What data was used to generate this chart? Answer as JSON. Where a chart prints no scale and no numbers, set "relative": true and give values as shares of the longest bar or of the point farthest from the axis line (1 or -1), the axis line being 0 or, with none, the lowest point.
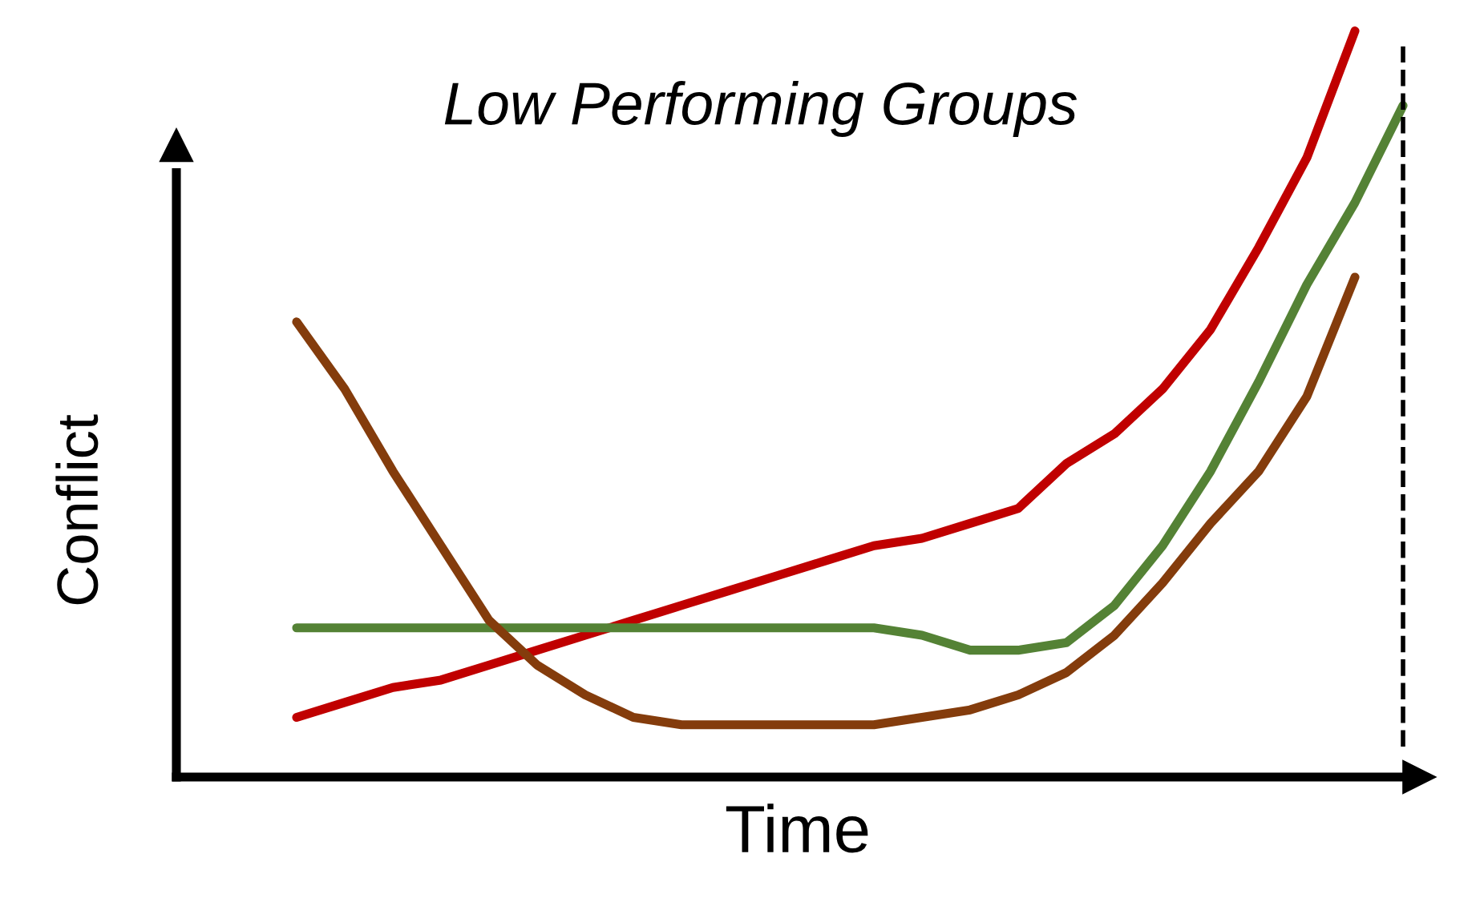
{
  "chart_data": {
    "type": "line",
    "title": "Low Performing Groups",
    "xlabel": "Time",
    "ylabel": "Conflict",
    "relative": true,
    "categories": [
      null,
      null,
      null,
      null,
      null,
      null,
      null,
      null,
      null,
      null,
      null,
      null,
      null,
      null,
      null,
      null,
      null,
      null,
      null,
      null,
      null,
      null,
      null,
      null
    ],
    "series": [
      {
        "color": "#c00000",
        "values": [
          0.08,
          0.1,
          0.12,
          0.13,
          0.15,
          0.17,
          0.19,
          0.21,
          0.23,
          0.25,
          0.27,
          0.29,
          0.31,
          0.32,
          0.34,
          0.36,
          0.42,
          0.46,
          0.52,
          0.6,
          0.71,
          0.83,
          1.0,
          null
        ]
      },
      {
        "color": "#548235",
        "values": [
          0.2,
          0.2,
          0.2,
          0.2,
          0.2,
          0.2,
          0.2,
          0.2,
          0.2,
          0.2,
          0.2,
          0.2,
          0.2,
          0.19,
          0.17,
          0.17,
          0.18,
          0.23,
          0.31,
          0.41,
          0.53,
          0.66,
          0.77,
          0.9
        ]
      },
      {
        "color": "#843c0c",
        "values": [
          0.61,
          0.52,
          0.41,
          0.31,
          0.21,
          0.15,
          0.11,
          0.08,
          0.07,
          0.07,
          0.07,
          0.07,
          0.07,
          0.08,
          0.09,
          0.11,
          0.14,
          0.19,
          0.26,
          0.34,
          0.41,
          0.51,
          0.67,
          null
        ]
      }
    ],
    "tick_labels": false,
    "grid": false,
    "legend": false
  }
}
